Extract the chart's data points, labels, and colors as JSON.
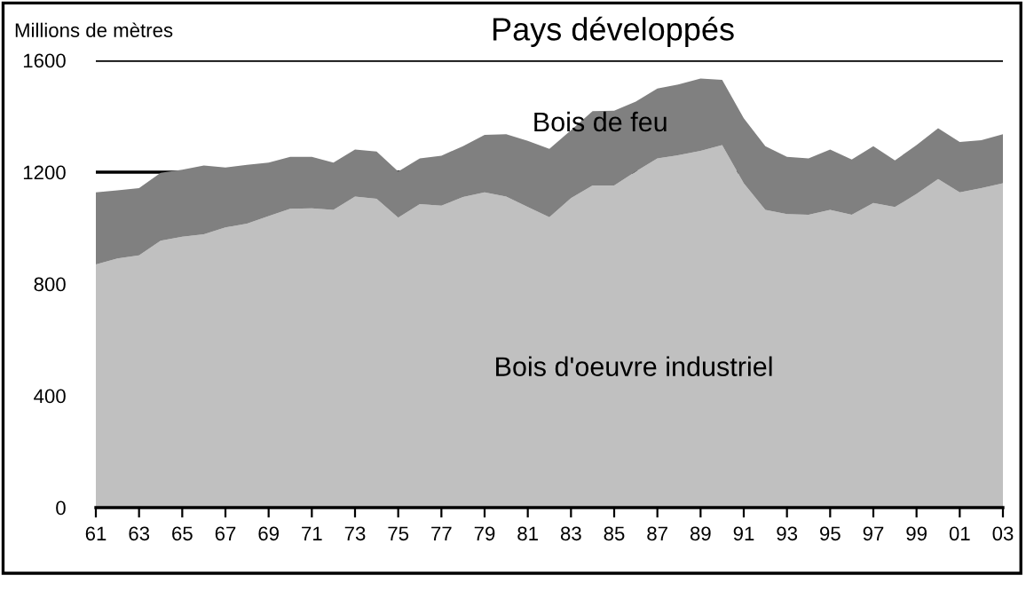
{
  "chart_data": {
    "type": "area",
    "title": "Pays développés",
    "ylabel": "Millions de mètres",
    "stacked": true,
    "legend": false,
    "grid": "y",
    "x": [
      1961,
      1962,
      1963,
      1964,
      1965,
      1966,
      1967,
      1968,
      1969,
      1970,
      1971,
      1972,
      1973,
      1974,
      1975,
      1976,
      1977,
      1978,
      1979,
      1980,
      1981,
      1982,
      1983,
      1984,
      1985,
      1986,
      1987,
      1988,
      1989,
      1990,
      1991,
      1992,
      1993,
      1994,
      1995,
      1996,
      1997,
      1998,
      1999,
      2000,
      2001,
      2002,
      2003
    ],
    "series": [
      {
        "name": "Bois d'oeuvre industriel",
        "color": "#c0c0c0",
        "values": [
          870,
          891,
          902,
          955,
          969,
          978,
          1002,
          1016,
          1043,
          1069,
          1071,
          1065,
          1113,
          1105,
          1037,
          1086,
          1080,
          1111,
          1128,
          1113,
          1075,
          1039,
          1107,
          1152,
          1152,
          1202,
          1249,
          1261,
          1276,
          1297,
          1160,
          1065,
          1050,
          1048,
          1065,
          1048,
          1090,
          1075,
          1122,
          1175,
          1128,
          1143,
          1160
        ]
      },
      {
        "name": "Bois de feu",
        "color": "#808080",
        "values": [
          258,
          244,
          241,
          243,
          240,
          246,
          215,
          210,
          191,
          186,
          184,
          169,
          168,
          169,
          165,
          163,
          179,
          182,
          205,
          223,
          237,
          244,
          243,
          266,
          268,
          250,
          250,
          253,
          259,
          233,
          233,
          228,
          205,
          201,
          216,
          197,
          203,
          167,
          175,
          182,
          180,
          171,
          176
        ]
      }
    ],
    "xlim": [
      1961,
      2003
    ],
    "xticks": [
      {
        "value": 1961,
        "label": "61"
      },
      {
        "value": 1963,
        "label": "63"
      },
      {
        "value": 1965,
        "label": "65"
      },
      {
        "value": 1967,
        "label": "67"
      },
      {
        "value": 1969,
        "label": "69"
      },
      {
        "value": 1971,
        "label": "71"
      },
      {
        "value": 1973,
        "label": "73"
      },
      {
        "value": 1975,
        "label": "75"
      },
      {
        "value": 1977,
        "label": "77"
      },
      {
        "value": 1979,
        "label": "79"
      },
      {
        "value": 1981,
        "label": "81"
      },
      {
        "value": 1983,
        "label": "83"
      },
      {
        "value": 1985,
        "label": "85"
      },
      {
        "value": 1987,
        "label": "87"
      },
      {
        "value": 1989,
        "label": "89"
      },
      {
        "value": 1991,
        "label": "91"
      },
      {
        "value": 1993,
        "label": "93"
      },
      {
        "value": 1995,
        "label": "95"
      },
      {
        "value": 1997,
        "label": "97"
      },
      {
        "value": 1999,
        "label": "99"
      },
      {
        "value": 2001,
        "label": "01"
      },
      {
        "value": 2003,
        "label": "03"
      }
    ],
    "ylim": [
      0,
      1600
    ],
    "yticks": [
      0,
      400,
      800,
      1200,
      1600
    ]
  }
}
